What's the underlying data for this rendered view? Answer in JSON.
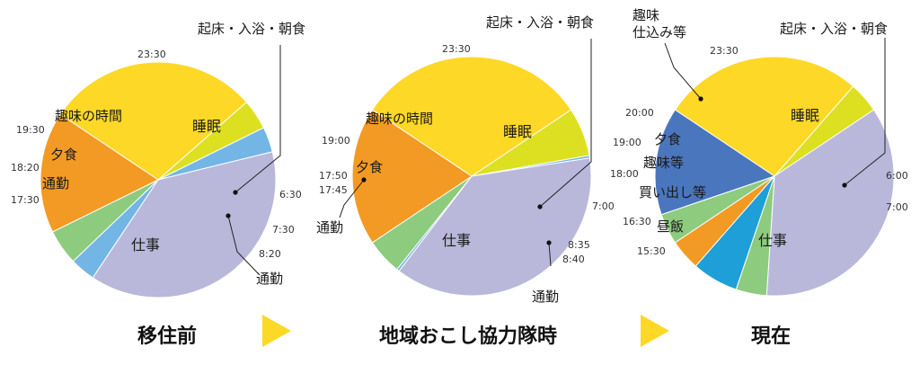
{
  "chart_data": [
    {
      "type": "pie",
      "title": "移住前",
      "slices": [
        {
          "category": "睡眠",
          "start": "23:30",
          "end": "6:30",
          "color": "#FDD826"
        },
        {
          "category": "起床・入浴・朝食",
          "start": "6:30",
          "end": "7:30",
          "color": "#DDE021"
        },
        {
          "category": "通勤",
          "start": "7:30",
          "end": "8:20",
          "color": "#73B6E6"
        },
        {
          "category": "仕事",
          "start": "8:20",
          "end": "17:30",
          "color": "#B9B8DA"
        },
        {
          "category": "通勤",
          "start": "17:30",
          "end": "18:20",
          "color": "#73B6E6"
        },
        {
          "category": "夕食",
          "start": "18:20",
          "end": "19:30",
          "color": "#8DCB7F"
        },
        {
          "category": "趣味の時間",
          "start": "19:30",
          "end": "23:30",
          "color": "#F39A24"
        }
      ]
    },
    {
      "type": "pie",
      "title": "地域おこし協力隊時",
      "slices": [
        {
          "category": "睡眠",
          "start": "23:30",
          "end": "7:00",
          "color": "#FDD826"
        },
        {
          "category": "起床・入浴・朝食",
          "start": "7:00",
          "end": "8:35",
          "color": "#DDE021"
        },
        {
          "category": "通勤",
          "start": "8:35",
          "end": "8:40",
          "color": "#73B6E6"
        },
        {
          "category": "仕事",
          "start": "8:40",
          "end": "17:45",
          "color": "#B9B8DA"
        },
        {
          "category": "通勤",
          "start": "17:45",
          "end": "17:50",
          "color": "#73B6E6"
        },
        {
          "category": "夕食",
          "start": "17:50",
          "end": "19:00",
          "color": "#8DCB7F"
        },
        {
          "category": "趣味の時間",
          "start": "19:00",
          "end": "23:30",
          "color": "#F39A24"
        }
      ]
    },
    {
      "type": "pie",
      "title": "現在",
      "slices": [
        {
          "category": "睡眠",
          "start": "23:30",
          "end": "6:00",
          "color": "#FDD826"
        },
        {
          "category": "起床・入浴・朝食",
          "start": "6:00",
          "end": "7:00",
          "color": "#DDE021"
        },
        {
          "category": "仕事",
          "start": "7:00",
          "end": "15:30",
          "color": "#B9B8DA"
        },
        {
          "category": "昼飯",
          "start": "15:30",
          "end": "16:30",
          "color": "#8DCB7F"
        },
        {
          "category": "買い出し等",
          "start": "16:30",
          "end": "18:00",
          "color": "#1E9FD8"
        },
        {
          "category": "趣味等",
          "start": "18:00",
          "end": "19:00",
          "color": "#F39A24"
        },
        {
          "category": "夕食",
          "start": "19:00",
          "end": "20:00",
          "color": "#8DCB7F"
        },
        {
          "category": "趣味仕込み等",
          "start": "20:00",
          "end": "23:30",
          "color": "#4A76BE"
        }
      ]
    }
  ],
  "labels": {
    "c1": {
      "t2330": "23:30",
      "t630": "6:30",
      "t730": "7:30",
      "t820": "8:20",
      "t1730": "17:30",
      "t1820": "18:20",
      "t1930": "19:30",
      "sleep": "睡眠",
      "morning": "起床・入浴・朝食",
      "commute_am": "通勤",
      "work": "仕事",
      "commute_pm": "通勤",
      "dinner": "夕食",
      "hobby": "趣味の時間"
    },
    "c2": {
      "t2330": "23:30",
      "t700": "7:00",
      "t835": "8:35",
      "t840": "8:40",
      "t1745": "17:45",
      "t1750": "17:50",
      "t1900": "19:00",
      "sleep": "睡眠",
      "morning": "起床・入浴・朝食",
      "commute_am": "通勤",
      "work": "仕事",
      "commute_pm": "通勤",
      "dinner": "夕食",
      "hobby": "趣味の時間"
    },
    "c3": {
      "t2330": "23:30",
      "t600": "6:00",
      "t700": "7:00",
      "t1530": "15:30",
      "t1630": "16:30",
      "t1800": "18:00",
      "t1900": "19:00",
      "t2000": "20:00",
      "sleep": "睡眠",
      "morning": "起床・入浴・朝食",
      "work": "仕事",
      "lunch": "昼飯",
      "errands": "買い出し等",
      "hobby2": "趣味等",
      "dinner": "夕食",
      "hobby_a": "趣味",
      "hobby_b": "仕込み等"
    }
  },
  "captions": [
    "移住前",
    "地域おこし協力隊時",
    "現在"
  ],
  "arrow_color": "#FDD826"
}
